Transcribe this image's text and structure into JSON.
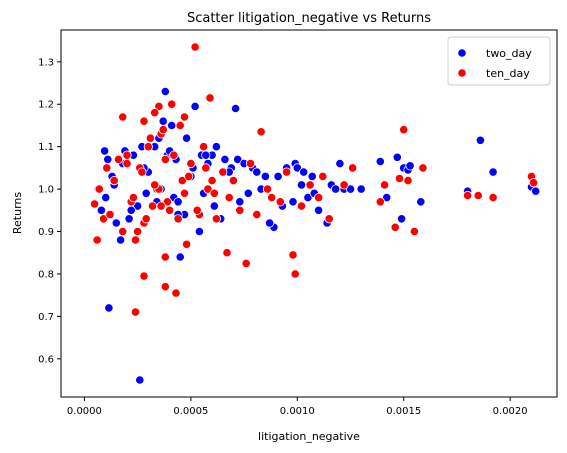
{
  "chart_data": {
    "type": "scatter",
    "title": "Scatter litigation_negative vs Returns",
    "xlabel": "litigation_negative",
    "ylabel": "Returns",
    "xlim": [
      -0.00011,
      0.00222
    ],
    "ylim": [
      0.51,
      1.375
    ],
    "xticks": [
      0.0,
      0.0005,
      0.001,
      0.0015,
      0.002
    ],
    "xtick_labels": [
      "0.0000",
      "0.0005",
      "0.0010",
      "0.0015",
      "0.0020"
    ],
    "yticks": [
      0.6,
      0.7,
      0.8,
      0.9,
      1.0,
      1.1,
      1.2,
      1.3
    ],
    "ytick_labels": [
      "0.6",
      "0.7",
      "0.8",
      "0.9",
      "1.0",
      "1.1",
      "1.2",
      "1.3"
    ],
    "grid": false,
    "legend_position": "top-right",
    "series": [
      {
        "name": "two_day",
        "color": "#0000ff",
        "x": [
          0.00026,
          0.000115,
          0.00045,
          0.00038,
          0.00052,
          0.00071,
          0.00037,
          0.00031,
          0.00033,
          0.00055,
          0.00048,
          0.00062,
          0.00066,
          0.00058,
          0.0006,
          0.00069,
          0.00072,
          0.00075,
          0.00079,
          0.00081,
          0.00085,
          0.00089,
          0.00091,
          0.00093,
          0.00095,
          0.00099,
          0.001,
          0.00103,
          0.00105,
          0.00107,
          0.0011,
          0.00112,
          0.00114,
          0.00116,
          0.00118,
          0.0012,
          0.00122,
          0.00125,
          0.0013,
          0.00139,
          0.00142,
          0.00147,
          0.00149,
          0.0015,
          0.00152,
          0.00153,
          0.00158,
          0.0018,
          0.00186,
          0.00192,
          0.0021,
          0.00212,
          6.5e-05,
          8e-05,
          9.5e-05,
          0.00011,
          0.00013,
          0.00015,
          0.00017,
          0.00019,
          0.00021,
          0.00023,
          0.00025,
          0.00027,
          0.00029,
          0.00035,
          0.00041,
          0.00043,
          0.00047,
          0.00054,
          0.00057,
          0.00064,
          0.00068,
          0.00073,
          0.00077,
          0.00083,
          0.00087,
          0.00098,
          0.00102,
          0.00108,
          0.0003,
          0.00034,
          0.00039,
          0.00044,
          0.0005,
          0.00036,
          0.00042,
          0.00028,
          0.00032,
          0.0001,
          0.00014,
          0.00018,
          0.00022,
          0.00046,
          0.00056,
          0.00061,
          0.0007,
          0.0004,
          0.00044,
          0.00051
        ],
        "y": [
          0.55,
          0.72,
          0.84,
          1.23,
          1.195,
          1.19,
          1.16,
          1.12,
          1.1,
          1.08,
          1.12,
          1.1,
          1.07,
          1.06,
          1.08,
          1.05,
          1.07,
          1.06,
          1.05,
          1.04,
          1.03,
          0.91,
          1.03,
          0.96,
          1.05,
          1.06,
          1.05,
          1.04,
          0.98,
          1.03,
          0.95,
          1.03,
          0.92,
          1.01,
          1.0,
          1.06,
          1.0,
          1.0,
          1.0,
          1.065,
          0.98,
          1.075,
          0.93,
          1.05,
          1.045,
          1.055,
          0.97,
          0.995,
          1.115,
          1.04,
          1.005,
          0.995,
          1.0,
          0.95,
          1.09,
          1.07,
          1.03,
          0.92,
          0.88,
          1.09,
          0.93,
          1.08,
          0.96,
          1.1,
          0.99,
          1.12,
          1.15,
          1.07,
          0.94,
          0.9,
          1.08,
          0.93,
          1.04,
          0.97,
          0.99,
          1.0,
          0.92,
          0.97,
          1.01,
          0.99,
          1.04,
          0.97,
          1.08,
          0.94,
          1.03,
          1.0,
          0.98,
          1.05,
          0.96,
          0.98,
          1.01,
          1.06,
          0.95,
          1.02,
          0.99,
          0.96,
          1.02,
          1.09,
          0.97,
          1.05
        ]
      },
      {
        "name": "ten_day",
        "color": "#ff0000",
        "x": [
          0.00052,
          0.00024,
          0.00043,
          0.00038,
          0.00028,
          0.00038,
          0.00059,
          0.00067,
          0.00076,
          0.00035,
          0.00047,
          0.00099,
          0.00098,
          0.00083,
          0.00088,
          0.00112,
          0.00115,
          0.00122,
          0.00126,
          0.00139,
          0.00141,
          0.00146,
          0.00148,
          0.0015,
          0.00152,
          0.00155,
          0.00159,
          0.0018,
          0.00185,
          0.00192,
          0.0021,
          0.00211,
          4.8e-05,
          6e-05,
          7e-05,
          9e-05,
          0.000105,
          0.00012,
          0.00014,
          0.00016,
          0.00018,
          0.0002,
          0.00022,
          0.00024,
          0.00026,
          0.00028,
          0.0003,
          0.00032,
          0.00034,
          0.00036,
          0.0004,
          0.00042,
          0.00044,
          0.00046,
          0.00048,
          0.0005,
          0.00054,
          0.00056,
          0.00058,
          0.00062,
          0.00065,
          0.00068,
          0.0007,
          0.00073,
          0.00078,
          0.00081,
          0.00086,
          0.00092,
          0.00095,
          0.00102,
          0.00106,
          0.0011,
          0.00018,
          0.00028,
          0.00033,
          0.00037,
          0.00041,
          0.00045,
          0.0002,
          0.00025,
          0.00031,
          0.00035,
          0.00039,
          0.00049,
          0.00053,
          0.00057,
          0.00061,
          0.00023,
          0.00027,
          0.00029,
          0.00038,
          0.00047,
          0.00033,
          0.00036,
          0.0006
        ],
        "y": [
          1.335,
          0.71,
          0.755,
          0.77,
          0.795,
          0.84,
          1.215,
          0.85,
          0.825,
          1.195,
          1.17,
          0.8,
          0.845,
          1.135,
          0.98,
          1.03,
          0.93,
          1.01,
          1.05,
          0.97,
          1.01,
          0.91,
          1.025,
          1.14,
          1.02,
          0.9,
          1.05,
          0.985,
          0.985,
          0.98,
          1.03,
          1.015,
          0.965,
          0.88,
          1.0,
          0.93,
          1.05,
          0.94,
          1.02,
          1.07,
          0.9,
          1.08,
          0.97,
          0.88,
          1.05,
          0.92,
          1.1,
          0.96,
          1.0,
          1.13,
          0.95,
          1.08,
          0.93,
          1.02,
          0.87,
          1.06,
          0.94,
          1.1,
          1.0,
          0.93,
          1.04,
          0.98,
          1.02,
          0.95,
          1.06,
          0.94,
          1.0,
          0.97,
          1.04,
          0.96,
          1.01,
          0.98,
          1.17,
          1.16,
          1.18,
          1.14,
          1.2,
          1.15,
          1.06,
          0.9,
          1.12,
          1.0,
          0.97,
          1.03,
          0.95,
          1.05,
          0.99,
          0.98,
          1.04,
          0.93,
          1.07,
          0.99,
          1.01,
          0.96,
          1.02
        ]
      }
    ]
  }
}
